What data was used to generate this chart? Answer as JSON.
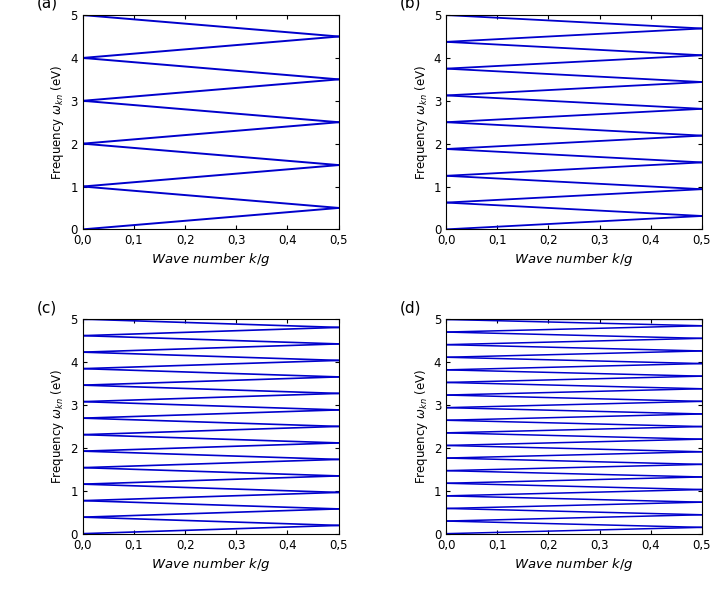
{
  "subplots": [
    "(a)",
    "(b)",
    "(c)",
    "(d)"
  ],
  "xlabel": "Wave number $k/g$",
  "ylabel_base": "Frequency $\\omega_{kn}$ (eV)",
  "xlim": [
    0.0,
    0.5
  ],
  "ylim": [
    0.0,
    5.0
  ],
  "xticks": [
    0.0,
    0.1,
    0.2,
    0.3,
    0.4,
    0.5
  ],
  "yticks": [
    0,
    1,
    2,
    3,
    4,
    5
  ],
  "xticklabels": [
    "0,0",
    "0,1",
    "0,2",
    "0,3",
    "0,4",
    "0,5"
  ],
  "yticklabels": [
    "0",
    "1",
    "2",
    "3",
    "4",
    "5"
  ],
  "line_color": "#0000CC",
  "bg_color": "#ffffff",
  "panels": [
    {
      "n_bands": 11,
      "c": 1.0,
      "lw": 1.4
    },
    {
      "n_bands": 17,
      "c": 0.625,
      "lw": 1.3
    },
    {
      "n_bands": 27,
      "c": 0.385,
      "lw": 1.2
    },
    {
      "n_bands": 35,
      "c": 0.294,
      "lw": 1.1
    }
  ]
}
